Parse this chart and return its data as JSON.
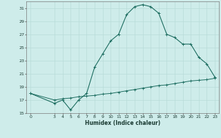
{
  "xlabel": "Humidex (Indice chaleur)",
  "bg_color": "#ceecea",
  "grid_color": "#b8dbd8",
  "line_color": "#1a6b5e",
  "upper_x": [
    0,
    3,
    4,
    5,
    6,
    7,
    8,
    9,
    10,
    11,
    12,
    13,
    14,
    15,
    16,
    17,
    18,
    19,
    20,
    21,
    22,
    23
  ],
  "upper_y": [
    18.0,
    16.5,
    17.0,
    15.5,
    17.0,
    18.0,
    22.0,
    24.0,
    26.0,
    27.0,
    30.0,
    31.2,
    31.5,
    31.2,
    30.2,
    27.0,
    26.5,
    25.5,
    25.5,
    23.5,
    22.5,
    20.5
  ],
  "lower_x": [
    0,
    3,
    4,
    5,
    6,
    7,
    8,
    9,
    10,
    11,
    12,
    13,
    14,
    15,
    16,
    17,
    18,
    19,
    20,
    21,
    22,
    23
  ],
  "lower_y": [
    18.0,
    17.0,
    17.2,
    17.3,
    17.5,
    17.6,
    17.7,
    17.9,
    18.0,
    18.2,
    18.4,
    18.6,
    18.8,
    19.0,
    19.2,
    19.3,
    19.5,
    19.7,
    19.9,
    20.0,
    20.1,
    20.3
  ],
  "ylim": [
    15,
    32
  ],
  "yticks": [
    15,
    17,
    19,
    21,
    23,
    25,
    27,
    29,
    31
  ],
  "xticks": [
    0,
    3,
    4,
    5,
    6,
    7,
    8,
    9,
    10,
    11,
    12,
    13,
    14,
    15,
    16,
    17,
    18,
    19,
    20,
    21,
    22,
    23
  ],
  "xlim": [
    -0.5,
    23.5
  ]
}
